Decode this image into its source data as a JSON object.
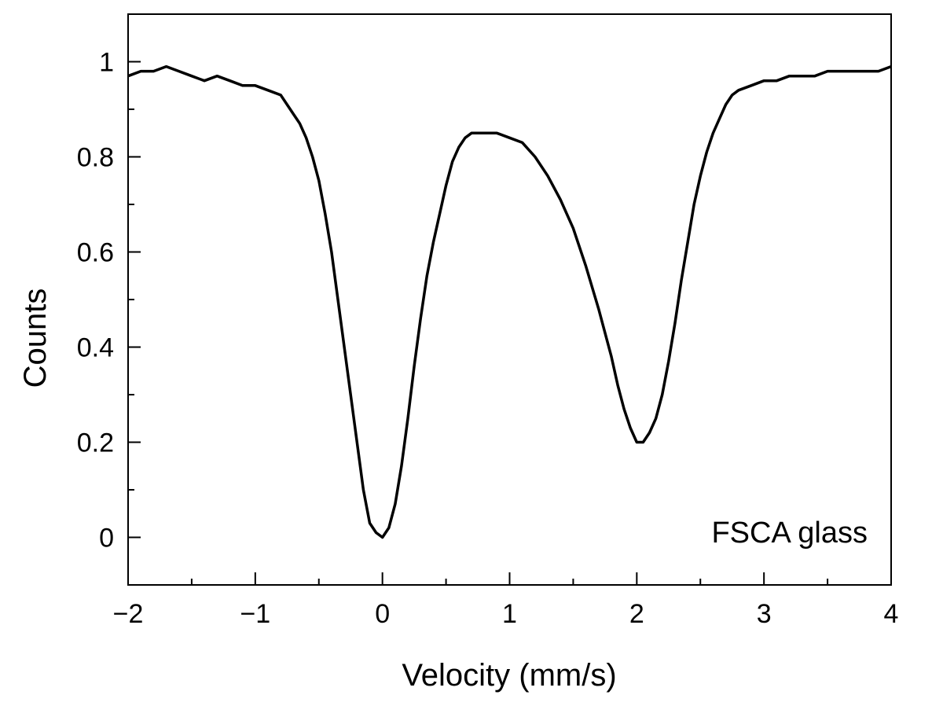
{
  "chart_data": {
    "type": "line",
    "title": "",
    "xlabel": "Velocity (mm/s)",
    "ylabel": "Counts",
    "xlim": [
      -2,
      4
    ],
    "ylim": [
      -0.1,
      1.1
    ],
    "grid": false,
    "legend": "none",
    "x_ticks": [
      -2,
      -1,
      0,
      1,
      2,
      3,
      4
    ],
    "x_tick_labels": [
      "−2",
      "−1",
      "0",
      "1",
      "2",
      "3",
      "4"
    ],
    "y_ticks": [
      0,
      0.2,
      0.4,
      0.6,
      0.8,
      1
    ],
    "y_tick_labels": [
      "0",
      "0.2",
      "0.4",
      "0.6",
      "0.8",
      "1"
    ],
    "x_minor_step": 0.5,
    "y_minor_step": 0.1,
    "annotation": "FSCA glass",
    "line_color": "#000000",
    "series": [
      {
        "x": [
          -2.0,
          -1.9,
          -1.8,
          -1.7,
          -1.6,
          -1.5,
          -1.4,
          -1.3,
          -1.2,
          -1.1,
          -1.0,
          -0.9,
          -0.8,
          -0.75,
          -0.7,
          -0.65,
          -0.6,
          -0.55,
          -0.5,
          -0.45,
          -0.4,
          -0.35,
          -0.3,
          -0.25,
          -0.2,
          -0.15,
          -0.1,
          -0.05,
          0.0,
          0.05,
          0.1,
          0.15,
          0.2,
          0.25,
          0.3,
          0.35,
          0.4,
          0.45,
          0.5,
          0.55,
          0.6,
          0.65,
          0.7,
          0.75,
          0.8,
          0.9,
          1.0,
          1.1,
          1.2,
          1.3,
          1.4,
          1.5,
          1.6,
          1.7,
          1.8,
          1.85,
          1.9,
          1.95,
          2.0,
          2.05,
          2.1,
          2.15,
          2.2,
          2.25,
          2.3,
          2.35,
          2.4,
          2.45,
          2.5,
          2.55,
          2.6,
          2.65,
          2.7,
          2.75,
          2.8,
          2.9,
          3.0,
          3.1,
          3.2,
          3.3,
          3.4,
          3.5,
          3.6,
          3.7,
          3.8,
          3.9,
          4.0
        ],
        "y": [
          0.97,
          0.98,
          0.98,
          0.99,
          0.98,
          0.97,
          0.96,
          0.97,
          0.96,
          0.95,
          0.95,
          0.94,
          0.93,
          0.91,
          0.89,
          0.87,
          0.84,
          0.8,
          0.75,
          0.68,
          0.6,
          0.5,
          0.4,
          0.3,
          0.2,
          0.1,
          0.03,
          0.01,
          0.0,
          0.02,
          0.07,
          0.15,
          0.25,
          0.36,
          0.46,
          0.55,
          0.62,
          0.68,
          0.74,
          0.79,
          0.82,
          0.84,
          0.85,
          0.85,
          0.85,
          0.85,
          0.84,
          0.83,
          0.8,
          0.76,
          0.71,
          0.65,
          0.57,
          0.48,
          0.38,
          0.32,
          0.27,
          0.23,
          0.2,
          0.2,
          0.22,
          0.25,
          0.3,
          0.37,
          0.45,
          0.54,
          0.62,
          0.7,
          0.76,
          0.81,
          0.85,
          0.88,
          0.91,
          0.93,
          0.94,
          0.95,
          0.96,
          0.96,
          0.97,
          0.97,
          0.97,
          0.98,
          0.98,
          0.98,
          0.98,
          0.98,
          0.99
        ]
      }
    ]
  }
}
